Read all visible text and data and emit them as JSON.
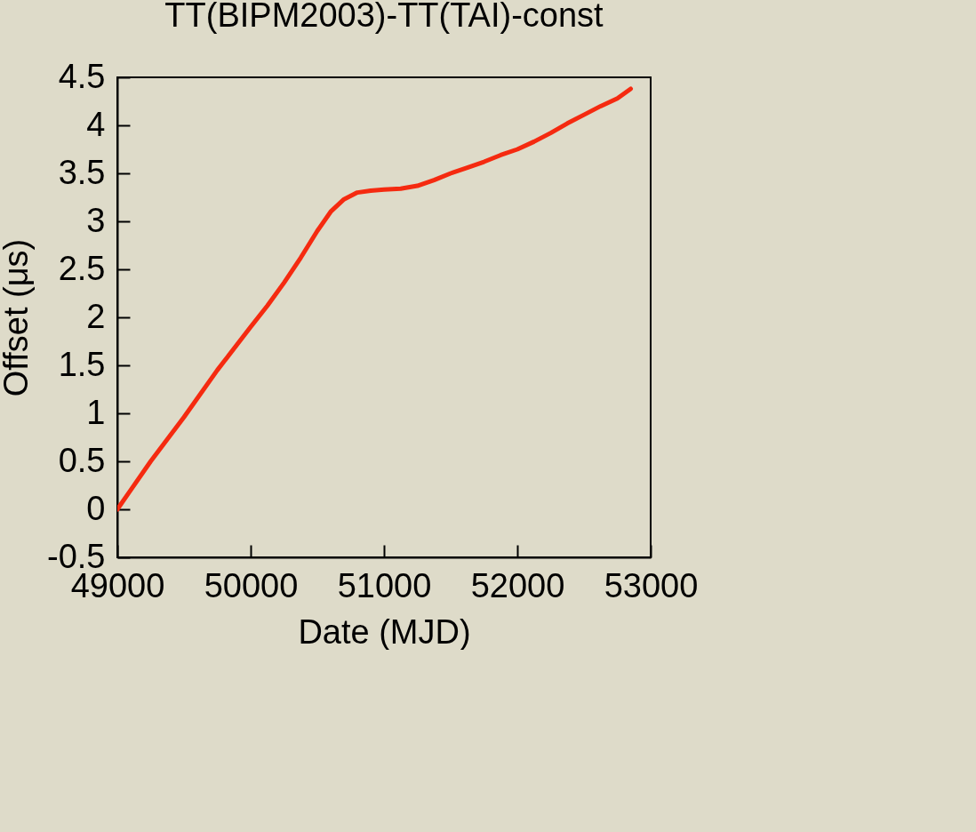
{
  "chart_data": {
    "type": "line",
    "title": "TT(BIPM2003)-TT(TAI)-const",
    "xlabel": "Date (MJD)",
    "ylabel": "Offset (μs)",
    "x": [
      49000,
      49100,
      49250,
      49500,
      49750,
      50000,
      50125,
      50250,
      50375,
      50500,
      50600,
      50700,
      50800,
      50900,
      51000,
      51125,
      51250,
      51375,
      51500,
      51625,
      51750,
      51875,
      52000,
      52125,
      52250,
      52375,
      52500,
      52625,
      52750,
      52850
    ],
    "series": [
      {
        "color": "#f52a10",
        "values": [
          0,
          0.2,
          0.5,
          0.96,
          1.45,
          1.9,
          2.12,
          2.36,
          2.62,
          2.9,
          3.1,
          3.23,
          3.3,
          3.32,
          3.33,
          3.34,
          3.37,
          3.43,
          3.5,
          3.56,
          3.62,
          3.69,
          3.75,
          3.83,
          3.92,
          4.02,
          4.11,
          4.2,
          4.28,
          4.38
        ]
      }
    ],
    "xlim": [
      49000,
      53000
    ],
    "xticks": [
      49000,
      50000,
      51000,
      52000,
      53000
    ],
    "ylim": [
      -0.5,
      4.5
    ],
    "yticks": [
      -0.5,
      0,
      0.5,
      1,
      1.5,
      2,
      2.5,
      3,
      3.5,
      4,
      4.5
    ],
    "grid": false,
    "legend": false
  }
}
